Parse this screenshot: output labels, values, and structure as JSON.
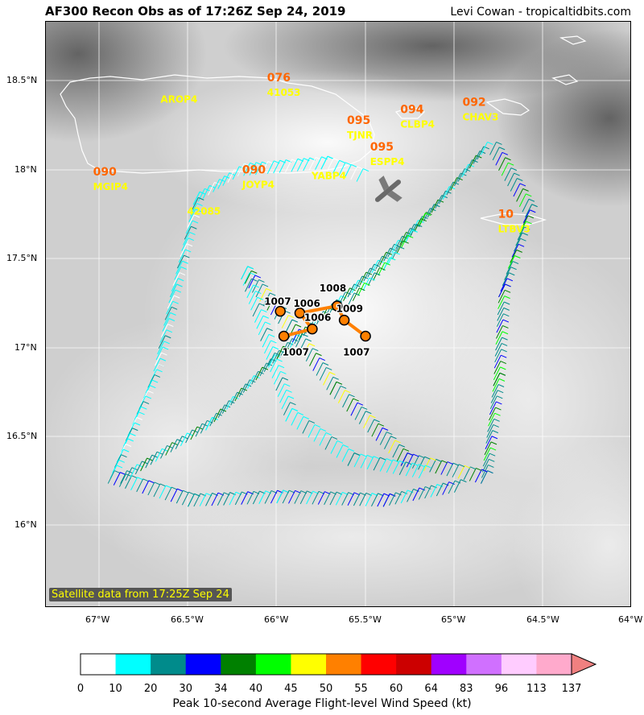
{
  "header": {
    "title": "AF300 Recon Obs as of 17:26Z Sep 24, 2019",
    "credit": "Levi Cowan - tropicaltidbits.com"
  },
  "map": {
    "satellite_note": "Satellite data from 17:25Z Sep 24",
    "lon_labels": [
      "67°W",
      "66.5°W",
      "66°W",
      "65.5°W",
      "65°W",
      "64.5°W",
      "64°W"
    ],
    "lat_labels": [
      "18.5°N",
      "18°N",
      "17.5°N",
      "17°N",
      "16.5°N",
      "16°N"
    ],
    "lon_range": [
      -67.3,
      -64.0
    ],
    "lat_range": [
      15.55,
      18.85
    ],
    "stations": [
      {
        "id": "AROP4",
        "speed": "",
        "lon": -66.6,
        "lat": 18.43
      },
      {
        "id": "41053",
        "speed": "076",
        "lon": -66.0,
        "lat": 18.47
      },
      {
        "id": "TJNR",
        "speed": "095",
        "lon": -65.55,
        "lat": 18.23
      },
      {
        "id": "CLBP4",
        "speed": "094",
        "lon": -65.25,
        "lat": 18.29
      },
      {
        "id": "CHAV3",
        "speed": "092",
        "lon": -64.9,
        "lat": 18.33
      },
      {
        "id": "ESPP4",
        "speed": "095",
        "lon": -65.42,
        "lat": 18.08
      },
      {
        "id": "YABP4",
        "speed": "",
        "lon": -65.75,
        "lat": 18.0
      },
      {
        "id": "MGIP4",
        "speed": "090",
        "lon": -66.98,
        "lat": 17.94
      },
      {
        "id": "JOYP4",
        "speed": "090",
        "lon": -66.14,
        "lat": 17.95
      },
      {
        "id": "42085",
        "speed": "",
        "lon": -66.45,
        "lat": 17.8
      },
      {
        "id": "LTBV3",
        "speed": "10",
        "lon": -64.7,
        "lat": 17.7
      }
    ],
    "pressure_obs": [
      {
        "value": "1007",
        "lon": -65.96,
        "lat": 17.08
      },
      {
        "value": "1007",
        "lon": -65.98,
        "lat": 17.22
      },
      {
        "value": "1006",
        "lon": -65.87,
        "lat": 17.21
      },
      {
        "value": "1006",
        "lon": -65.8,
        "lat": 17.12
      },
      {
        "value": "1008",
        "lon": -65.66,
        "lat": 17.25
      },
      {
        "value": "1009",
        "lon": -65.62,
        "lat": 17.17
      },
      {
        "value": "1007",
        "lon": -65.5,
        "lat": 17.08
      }
    ],
    "colors": {
      "land_outline": "#ffffff",
      "speed_label": "#ff6600",
      "station_label": "#ffff00",
      "pressure_marker": "#ff8000",
      "path_line": "#ff8000"
    }
  },
  "colorbar": {
    "title": "Peak 10-second Average Flight-level Wind Speed (kt)",
    "ticks": [
      "0",
      "10",
      "20",
      "30",
      "34",
      "40",
      "45",
      "50",
      "55",
      "60",
      "64",
      "83",
      "96",
      "113",
      "137"
    ],
    "colors": [
      "#ffffff",
      "#00ffff",
      "#008b8b",
      "#0000ff",
      "#008000",
      "#00ff00",
      "#ffff00",
      "#ff8000",
      "#ff0000",
      "#cc0000",
      "#a000ff",
      "#d070ff",
      "#ffccff",
      "#ffaacc"
    ],
    "extend_color": "#f08080"
  }
}
